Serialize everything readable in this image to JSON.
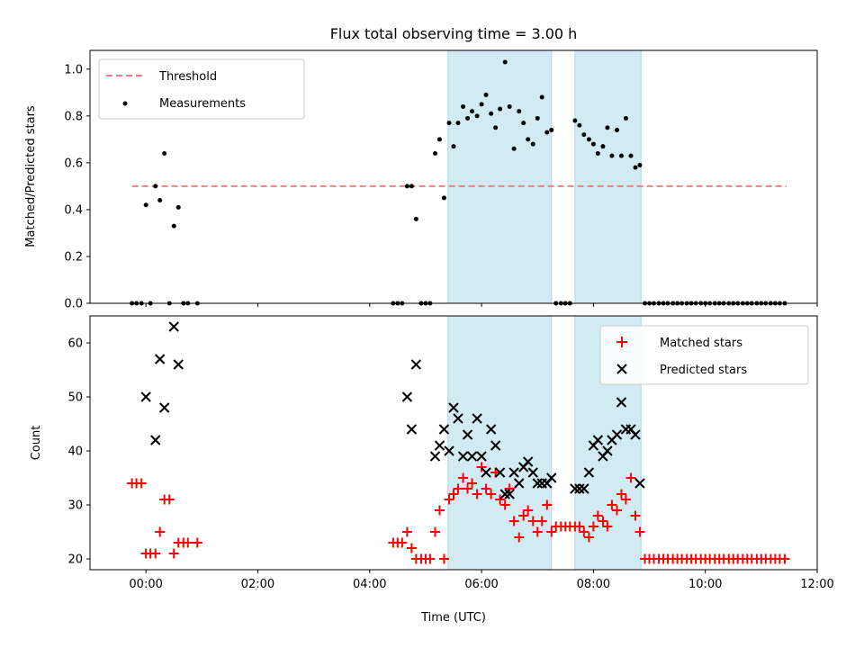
{
  "title": "Flux total observing time = 3.00 h",
  "colors": {
    "threshold": "#f08080",
    "measurement": "#000000",
    "matched": "#ff0000",
    "predicted": "#000000",
    "span": "#add8e6"
  },
  "chart_data": [
    {
      "type": "scatter",
      "ylabel": "Matched/Predicted stars",
      "xlim": [
        -1.0,
        12.0
      ],
      "ylim": [
        0,
        1.08
      ],
      "yticks": [
        "0.0",
        "0.2",
        "0.4",
        "0.6",
        "0.8",
        "1.0"
      ],
      "legend": {
        "position": "upper-left",
        "entries": [
          "Threshold",
          "Measurements"
        ]
      },
      "observing_spans": [
        [
          5.4,
          7.25
        ],
        [
          7.67,
          8.85
        ]
      ],
      "threshold": {
        "name": "Threshold",
        "y": 0.5,
        "x_range": [
          -0.25,
          11.45
        ]
      },
      "series": [
        {
          "name": "Measurements",
          "points": [
            [
              -0.25,
              0
            ],
            [
              -0.17,
              0
            ],
            [
              -0.08,
              0
            ],
            [
              0.0,
              0.42
            ],
            [
              0.08,
              0
            ],
            [
              0.17,
              0.5
            ],
            [
              0.25,
              0.44
            ],
            [
              0.33,
              0.64
            ],
            [
              0.42,
              0
            ],
            [
              0.5,
              0.33
            ],
            [
              0.58,
              0.41
            ],
            [
              0.67,
              0
            ],
            [
              0.75,
              0
            ],
            [
              0.92,
              0
            ],
            [
              4.42,
              0
            ],
            [
              4.5,
              0
            ],
            [
              4.58,
              0
            ],
            [
              4.67,
              0.5
            ],
            [
              4.75,
              0.5
            ],
            [
              4.83,
              0.36
            ],
            [
              4.92,
              0
            ],
            [
              5.0,
              0
            ],
            [
              5.08,
              0
            ],
            [
              5.17,
              0.64
            ],
            [
              5.25,
              0.7
            ],
            [
              5.33,
              0.45
            ],
            [
              5.42,
              0.77
            ],
            [
              5.5,
              0.67
            ],
            [
              5.58,
              0.77
            ],
            [
              5.67,
              0.84
            ],
            [
              5.75,
              0.79
            ],
            [
              5.83,
              0.82
            ],
            [
              5.92,
              0.8
            ],
            [
              6.0,
              0.85
            ],
            [
              6.08,
              0.89
            ],
            [
              6.17,
              0.81
            ],
            [
              6.25,
              0.75
            ],
            [
              6.33,
              0.83
            ],
            [
              6.42,
              1.03
            ],
            [
              6.5,
              0.84
            ],
            [
              6.58,
              0.66
            ],
            [
              6.67,
              0.82
            ],
            [
              6.75,
              0.77
            ],
            [
              6.83,
              0.7
            ],
            [
              6.92,
              0.68
            ],
            [
              7.0,
              0.79
            ],
            [
              7.08,
              0.88
            ],
            [
              7.17,
              0.73
            ],
            [
              7.25,
              0.74
            ],
            [
              7.33,
              0
            ],
            [
              7.42,
              0
            ],
            [
              7.5,
              0
            ],
            [
              7.58,
              0
            ],
            [
              7.67,
              0.78
            ],
            [
              7.75,
              0.76
            ],
            [
              7.83,
              0.72
            ],
            [
              7.92,
              0.7
            ],
            [
              8.0,
              0.68
            ],
            [
              8.08,
              0.64
            ],
            [
              8.17,
              0.67
            ],
            [
              8.25,
              0.75
            ],
            [
              8.33,
              0.63
            ],
            [
              8.42,
              0.74
            ],
            [
              8.5,
              0.63
            ],
            [
              8.58,
              0.79
            ],
            [
              8.67,
              0.63
            ],
            [
              8.75,
              0.58
            ],
            [
              8.83,
              0.59
            ],
            [
              8.92,
              0
            ],
            [
              9.0,
              0
            ],
            [
              9.08,
              0
            ],
            [
              9.17,
              0
            ],
            [
              9.25,
              0
            ],
            [
              9.33,
              0
            ],
            [
              9.42,
              0
            ],
            [
              9.5,
              0
            ],
            [
              9.58,
              0
            ],
            [
              9.67,
              0
            ],
            [
              9.75,
              0
            ],
            [
              9.83,
              0
            ],
            [
              9.92,
              0
            ],
            [
              10.0,
              0
            ],
            [
              10.08,
              0
            ],
            [
              10.17,
              0
            ],
            [
              10.25,
              0
            ],
            [
              10.33,
              0
            ],
            [
              10.42,
              0
            ],
            [
              10.5,
              0
            ],
            [
              10.58,
              0
            ],
            [
              10.67,
              0
            ],
            [
              10.75,
              0
            ],
            [
              10.83,
              0
            ],
            [
              10.92,
              0
            ],
            [
              11.0,
              0
            ],
            [
              11.08,
              0
            ],
            [
              11.17,
              0
            ],
            [
              11.25,
              0
            ],
            [
              11.33,
              0
            ],
            [
              11.42,
              0
            ]
          ]
        }
      ]
    },
    {
      "type": "scatter",
      "xlabel": "Time (UTC)",
      "ylabel": "Count",
      "xlim": [
        -1.0,
        12.0
      ],
      "ylim": [
        18,
        65
      ],
      "yticks": [
        "20",
        "30",
        "40",
        "50",
        "60"
      ],
      "xticks": [
        "00:00",
        "02:00",
        "04:00",
        "06:00",
        "08:00",
        "10:00",
        "12:00"
      ],
      "legend": {
        "position": "upper-right",
        "entries": [
          "Matched stars",
          "Predicted stars"
        ]
      },
      "observing_spans": [
        [
          5.4,
          7.25
        ],
        [
          7.67,
          8.85
        ]
      ],
      "series": [
        {
          "name": "Matched stars",
          "points": [
            [
              -0.25,
              34
            ],
            [
              -0.17,
              34
            ],
            [
              -0.08,
              34
            ],
            [
              0.0,
              21
            ],
            [
              0.08,
              21
            ],
            [
              0.17,
              21
            ],
            [
              0.25,
              25
            ],
            [
              0.33,
              31
            ],
            [
              0.42,
              31
            ],
            [
              0.5,
              21
            ],
            [
              0.58,
              23
            ],
            [
              0.67,
              23
            ],
            [
              0.75,
              23
            ],
            [
              0.92,
              23
            ],
            [
              4.42,
              23
            ],
            [
              4.5,
              23
            ],
            [
              4.58,
              23
            ],
            [
              4.67,
              25
            ],
            [
              4.75,
              22
            ],
            [
              4.83,
              20
            ],
            [
              4.92,
              20
            ],
            [
              5.0,
              20
            ],
            [
              5.08,
              20
            ],
            [
              5.17,
              25
            ],
            [
              5.25,
              29
            ],
            [
              5.33,
              20
            ],
            [
              5.42,
              31
            ],
            [
              5.5,
              32
            ],
            [
              5.58,
              33
            ],
            [
              5.67,
              35
            ],
            [
              5.75,
              33
            ],
            [
              5.83,
              34
            ],
            [
              5.92,
              32
            ],
            [
              6.0,
              37
            ],
            [
              6.08,
              33
            ],
            [
              6.17,
              32
            ],
            [
              6.25,
              36
            ],
            [
              6.33,
              31
            ],
            [
              6.42,
              30
            ],
            [
              6.5,
              33
            ],
            [
              6.58,
              27
            ],
            [
              6.67,
              24
            ],
            [
              6.75,
              28
            ],
            [
              6.83,
              29
            ],
            [
              6.92,
              27
            ],
            [
              7.0,
              25
            ],
            [
              7.08,
              27
            ],
            [
              7.17,
              30
            ],
            [
              7.25,
              25
            ],
            [
              7.33,
              26
            ],
            [
              7.42,
              26
            ],
            [
              7.5,
              26
            ],
            [
              7.58,
              26
            ],
            [
              7.67,
              26
            ],
            [
              7.75,
              26
            ],
            [
              7.83,
              25
            ],
            [
              7.92,
              24
            ],
            [
              8.0,
              26
            ],
            [
              8.08,
              28
            ],
            [
              8.17,
              27
            ],
            [
              8.25,
              26
            ],
            [
              8.33,
              30
            ],
            [
              8.42,
              29
            ],
            [
              8.5,
              32
            ],
            [
              8.58,
              31
            ],
            [
              8.67,
              35
            ],
            [
              8.75,
              28
            ],
            [
              8.83,
              25
            ],
            [
              8.92,
              20
            ],
            [
              9.0,
              20
            ],
            [
              9.08,
              20
            ],
            [
              9.17,
              20
            ],
            [
              9.25,
              20
            ],
            [
              9.33,
              20
            ],
            [
              9.42,
              20
            ],
            [
              9.5,
              20
            ],
            [
              9.58,
              20
            ],
            [
              9.67,
              20
            ],
            [
              9.75,
              20
            ],
            [
              9.83,
              20
            ],
            [
              9.92,
              20
            ],
            [
              10.0,
              20
            ],
            [
              10.08,
              20
            ],
            [
              10.17,
              20
            ],
            [
              10.25,
              20
            ],
            [
              10.33,
              20
            ],
            [
              10.42,
              20
            ],
            [
              10.5,
              20
            ],
            [
              10.58,
              20
            ],
            [
              10.67,
              20
            ],
            [
              10.75,
              20
            ],
            [
              10.83,
              20
            ],
            [
              10.92,
              20
            ],
            [
              11.0,
              20
            ],
            [
              11.08,
              20
            ],
            [
              11.17,
              20
            ],
            [
              11.25,
              20
            ],
            [
              11.33,
              20
            ],
            [
              11.42,
              20
            ]
          ]
        },
        {
          "name": "Predicted stars",
          "points": [
            [
              0.0,
              50
            ],
            [
              0.17,
              42
            ],
            [
              0.25,
              57
            ],
            [
              0.33,
              48
            ],
            [
              0.5,
              63
            ],
            [
              0.58,
              56
            ],
            [
              4.67,
              50
            ],
            [
              4.75,
              44
            ],
            [
              4.83,
              56
            ],
            [
              5.17,
              39
            ],
            [
              5.25,
              41
            ],
            [
              5.33,
              44
            ],
            [
              5.42,
              40
            ],
            [
              5.5,
              48
            ],
            [
              5.58,
              46
            ],
            [
              5.67,
              39
            ],
            [
              5.75,
              43
            ],
            [
              5.83,
              39
            ],
            [
              5.92,
              46
            ],
            [
              6.0,
              39
            ],
            [
              6.08,
              36
            ],
            [
              6.17,
              44
            ],
            [
              6.25,
              41
            ],
            [
              6.33,
              36
            ],
            [
              6.42,
              32
            ],
            [
              6.5,
              32
            ],
            [
              6.58,
              36
            ],
            [
              6.67,
              34
            ],
            [
              6.75,
              37
            ],
            [
              6.83,
              38
            ],
            [
              6.92,
              36
            ],
            [
              7.0,
              34
            ],
            [
              7.08,
              34
            ],
            [
              7.17,
              34
            ],
            [
              7.25,
              35
            ],
            [
              7.67,
              33
            ],
            [
              7.75,
              33
            ],
            [
              7.83,
              33
            ],
            [
              7.92,
              36
            ],
            [
              8.0,
              41
            ],
            [
              8.08,
              42
            ],
            [
              8.17,
              39
            ],
            [
              8.25,
              40
            ],
            [
              8.33,
              42
            ],
            [
              8.42,
              43
            ],
            [
              8.5,
              49
            ],
            [
              8.58,
              44
            ],
            [
              8.67,
              44
            ],
            [
              8.75,
              43
            ],
            [
              8.83,
              34
            ]
          ]
        }
      ]
    }
  ]
}
